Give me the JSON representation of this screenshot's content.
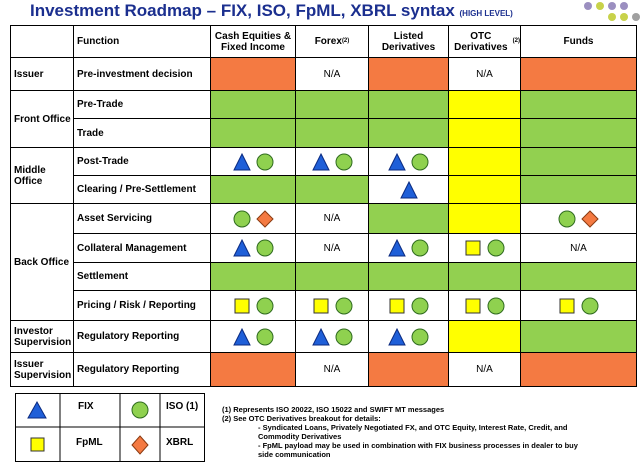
{
  "header": {
    "title": "Investment Roadmap – FIX, ISO, FpML, XBRL syntax",
    "subtitle": "(HIGH LEVEL)"
  },
  "table": {
    "columns": [
      {
        "label": "Function"
      },
      {
        "label": "Cash Equities & Fixed Income"
      },
      {
        "label": "Forex",
        "note": "(2)"
      },
      {
        "label": "Listed Derivatives"
      },
      {
        "label": "OTC Derivatives",
        "note": "(2)"
      },
      {
        "label": "Funds"
      }
    ],
    "groups": [
      {
        "label": "Issuer",
        "rows": [
          {
            "function": "Pre-investment decision",
            "cells": [
              null,
              "N/A",
              null,
              "N/A",
              null
            ]
          }
        ]
      },
      {
        "label": "Front Office",
        "rows": [
          {
            "function": "Pre-Trade",
            "cells": [
              null,
              null,
              null,
              null,
              null
            ]
          },
          {
            "function": "Trade",
            "cells": [
              null,
              null,
              null,
              null,
              null
            ]
          }
        ]
      },
      {
        "label": "Middle Office",
        "rows": [
          {
            "function": "Post-Trade",
            "cells": [
              null,
              null,
              null,
              null,
              null
            ]
          },
          {
            "function": "Clearing / Pre-Settlement",
            "cells": [
              null,
              null,
              null,
              null,
              null
            ]
          }
        ]
      },
      {
        "label": "Back Office",
        "rows": [
          {
            "function": "Asset Servicing",
            "cells": [
              null,
              "N/A",
              null,
              null,
              null
            ]
          },
          {
            "function": "Collateral Management",
            "cells": [
              null,
              "N/A",
              null,
              null,
              "N/A"
            ]
          },
          {
            "function": "Settlement",
            "cells": [
              null,
              null,
              null,
              null,
              null
            ]
          },
          {
            "function": "Pricing / Risk / Reporting",
            "cells": [
              null,
              null,
              null,
              null,
              null
            ]
          }
        ]
      },
      {
        "label": "Investor Supervision",
        "rows": [
          {
            "function": "Regulatory Reporting",
            "cells": [
              null,
              null,
              null,
              null,
              null
            ]
          }
        ]
      },
      {
        "label": "Issuer Supervision",
        "rows": [
          {
            "function": "Regulatory Reporting",
            "cells": [
              null,
              "N/A",
              null,
              "N/A",
              null
            ]
          }
        ]
      }
    ]
  },
  "legend": {
    "items": [
      "FIX",
      "ISO (1)",
      "FpML",
      "XBRL"
    ]
  },
  "notes": [
    "(1) Represents ISO 20022, ISO 15022 and SWIFT MT messages",
    "(2) See OTC Derivatives breakout for details:",
    "- Syndicated Loans, Privately Negotiated FX, and OTC Equity, Interest Rate, Credit, and Commodity Derivatives",
    "- FpML payload may be used in combination with FIX business processes in dealer to buy side communication"
  ]
}
